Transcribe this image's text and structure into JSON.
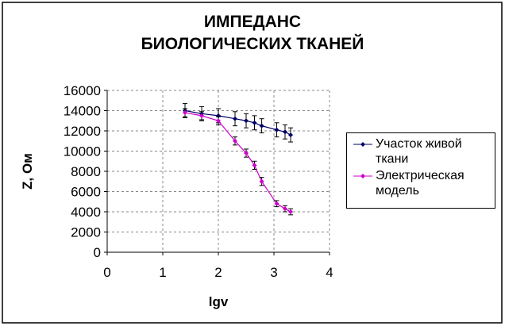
{
  "chart_data": {
    "type": "line",
    "title": "ИМПЕДАНС БИОЛОГИЧЕСКИХ ТКАНЕЙ",
    "x_label": "lgv",
    "y_label": "Z, Ом",
    "x": [
      1.4,
      1.7,
      2.0,
      2.3,
      2.5,
      2.65,
      2.78,
      3.05,
      3.2,
      3.3
    ],
    "series": [
      {
        "name": "Участок живой ткани",
        "color": "#000066",
        "values": [
          14000,
          13700,
          13500,
          13200,
          13000,
          12800,
          12500,
          12100,
          11900,
          11600
        ],
        "errors": [
          700,
          700,
          700,
          700,
          700,
          700,
          700,
          700,
          700,
          700
        ]
      },
      {
        "name": "Электрическая модель",
        "color": "#cc00cc",
        "values": [
          13800,
          13500,
          13000,
          11000,
          9800,
          8600,
          7000,
          4800,
          4300,
          4000
        ],
        "errors": [
          400,
          400,
          400,
          400,
          400,
          400,
          400,
          300,
          300,
          300
        ]
      }
    ],
    "xlim": [
      0,
      4
    ],
    "xticks": [
      0,
      1,
      2,
      3,
      4
    ],
    "ylim": [
      0,
      16000
    ],
    "yticks": [
      0,
      2000,
      4000,
      6000,
      8000,
      10000,
      12000,
      14000,
      16000
    ],
    "grid": true,
    "legend": "right"
  }
}
